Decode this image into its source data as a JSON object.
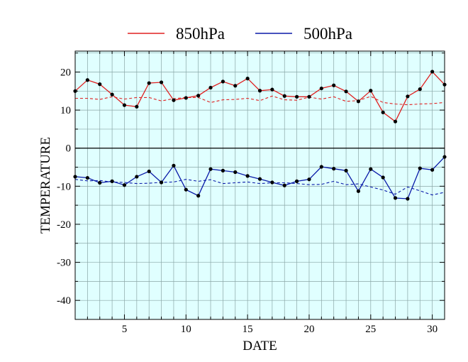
{
  "chart_data": {
    "type": "line",
    "title": "",
    "xlabel": "DATE",
    "ylabel": "TEMPERATURE",
    "xlim": [
      1,
      31
    ],
    "ylim": [
      -45,
      25.5
    ],
    "xticks": [
      5,
      10,
      15,
      20,
      25,
      30
    ],
    "yticks": [
      20,
      10,
      0,
      -10,
      -20,
      -30,
      -40
    ],
    "grid": true,
    "legend_position": "top",
    "background_color": "#e0ffff",
    "series": [
      {
        "name": "850hPa",
        "color": "#e02020",
        "x": [
          1,
          2,
          3,
          4,
          5,
          6,
          7,
          8,
          9,
          10,
          11,
          12,
          13,
          14,
          15,
          16,
          17,
          18,
          19,
          20,
          21,
          22,
          23,
          24,
          25,
          26,
          27,
          28,
          29,
          30,
          31
        ],
        "values": [
          15.0,
          17.9,
          16.8,
          14.1,
          11.3,
          10.9,
          17.1,
          17.3,
          12.6,
          13.2,
          13.8,
          15.9,
          17.5,
          16.4,
          18.3,
          15.1,
          15.4,
          13.7,
          13.5,
          13.5,
          15.7,
          16.5,
          14.9,
          12.3,
          15.1,
          9.4,
          7.0,
          13.6,
          15.5,
          20.1,
          16.7
        ]
      },
      {
        "name": "500hPa",
        "color": "#0a1aa8",
        "x": [
          1,
          2,
          3,
          4,
          5,
          6,
          7,
          8,
          9,
          10,
          11,
          12,
          13,
          14,
          15,
          16,
          17,
          18,
          19,
          20,
          21,
          22,
          23,
          24,
          25,
          26,
          27,
          28,
          29,
          30,
          31
        ],
        "values": [
          -7.5,
          -7.8,
          -9.1,
          -8.7,
          -9.7,
          -7.5,
          -6.1,
          -9.0,
          -4.6,
          -10.9,
          -12.5,
          -5.5,
          -5.9,
          -6.3,
          -7.3,
          -8.1,
          -9.0,
          -9.8,
          -8.7,
          -8.2,
          -4.9,
          -5.4,
          -5.9,
          -11.3,
          -5.5,
          -7.7,
          -13.1,
          -13.3,
          -5.3,
          -5.7,
          -2.3
        ]
      },
      {
        "name": "",
        "color": "#e02020",
        "style": "dashed",
        "x": [
          1,
          2,
          3,
          4,
          5,
          6,
          7,
          8,
          9,
          10,
          11,
          12,
          13,
          14,
          15,
          16,
          17,
          18,
          19,
          20,
          21,
          22,
          23,
          24,
          25,
          26,
          27,
          28,
          29,
          30,
          31
        ],
        "values": [
          13.1,
          13.1,
          12.8,
          13.5,
          12.9,
          13.3,
          13.3,
          12.4,
          13.0,
          13.3,
          13.3,
          12.0,
          12.7,
          12.8,
          13.1,
          12.5,
          13.7,
          12.7,
          12.6,
          13.4,
          12.9,
          13.5,
          12.3,
          12.5,
          13.6,
          12.0,
          11.6,
          11.4,
          11.6,
          11.7,
          12.0
        ]
      },
      {
        "name": "",
        "color": "#0a1aa8",
        "style": "dashed",
        "x": [
          1,
          2,
          3,
          4,
          5,
          6,
          7,
          8,
          9,
          10,
          11,
          12,
          13,
          14,
          15,
          16,
          17,
          18,
          19,
          20,
          21,
          22,
          23,
          24,
          25,
          26,
          27,
          28,
          29,
          30,
          31
        ],
        "values": [
          -8.2,
          -8.6,
          -8.5,
          -8.9,
          -9.0,
          -9.3,
          -9.2,
          -9.0,
          -8.9,
          -8.2,
          -8.7,
          -8.3,
          -9.3,
          -9.1,
          -8.9,
          -9.3,
          -9.1,
          -9.1,
          -9.3,
          -9.6,
          -9.5,
          -8.7,
          -9.6,
          -9.4,
          -10.2,
          -11.0,
          -12.1,
          -10.2,
          -11.2,
          -12.3,
          -11.6
        ]
      }
    ]
  }
}
